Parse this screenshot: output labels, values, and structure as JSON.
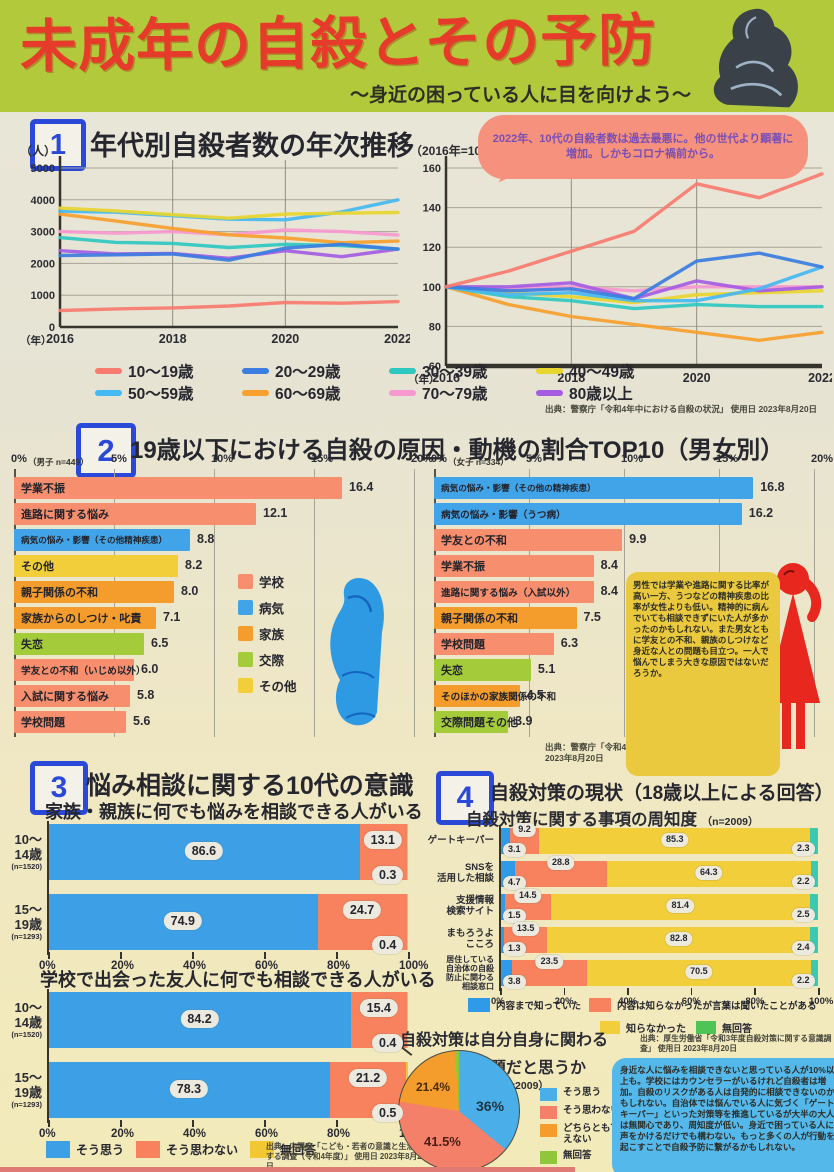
{
  "header": {
    "title": "未成年の自殺とその予防",
    "subtitle": "〜身近の困っている人に目を向けよう〜"
  },
  "s1": {
    "num": "1",
    "title": "年代別自殺者数の年次推移",
    "bubble": "2022年、10代の自殺者数は過去最悪に。他の世代より顕著に増加。しかもコロナ禍前から。",
    "source": "出典：警察庁「令和4年中における自殺の状況」 使用日 2023年8月20日"
  },
  "s2": {
    "num": "2",
    "title": "19歳以下における自殺の原因・動機の割合TOP10（男女別）",
    "note": "男性では学業や進路に関する比率が高い一方、うつなどの精神疾患の比率が女性よりも低い。精神的に病んでいても相談できずにいた人が多かったのかもしれない。また男女ともに学友との不和、親族のしつけなど身近な人との問題も目立つ。一人で悩んでしまう大きな原因ではないだろうか。",
    "source": "出典：警察庁「令和4年中における自殺の状況」 使用日 2023年8月20日"
  },
  "s3": {
    "num": "3",
    "title": "悩み相談に関する10代の意識",
    "chartA_title": "家族・親族に何でも悩みを相談できる人がいる",
    "chartB_title": "学校で出会った友人に何でも相談できる人がいる",
    "source": "出典：内閣府「こども・若者の意識と生活に関する調査（令和4年度）」 使用日 2023年8月20日"
  },
  "s4": {
    "num": "4",
    "title": "自殺対策の現状（18歳以上による回答）",
    "subtitle": "自殺対策に関する事項の周知度",
    "subtitle_n": "（n=2009）",
    "pie_t1": "自殺対策は自分自身に関わる",
    "pie_t2": "問題だと思うか",
    "pie_n": "（n=2009）",
    "note": "身近な人に悩みを相談できないと思っている人が10%以上も。学校にはカウンセラーがいるけれど自殺者は増加。自殺のリスクがある人は自発的に相談できないのかもしれない。自治体では悩んでいる人に気づく「ゲートキーパー」といった対策等を推進しているが大半の大人は無関心であり、周知度が低い。身近で困っている人に声をかけるだけでも構わない。もっと多くの人が行動を起こすことで自殺予防に繋がるかもしれない。",
    "source": "出典：厚生労働省「令和3年度自殺対策に関する意識調査」 使用日 2023年8月20日"
  },
  "legends": {
    "age_groups": [
      {
        "label": "10〜19歳",
        "color": "#f87b6f"
      },
      {
        "label": "20〜29歳",
        "color": "#3b7de0"
      },
      {
        "label": "30〜39歳",
        "color": "#2fc8c0"
      },
      {
        "label": "40〜49歳",
        "color": "#e8d52e"
      },
      {
        "label": "50〜59歳",
        "color": "#45b9f2"
      },
      {
        "label": "60〜69歳",
        "color": "#f7a02d"
      },
      {
        "label": "70〜79歳",
        "color": "#f799d0"
      },
      {
        "label": "80歳以上",
        "color": "#a55ce3"
      }
    ],
    "cause_cats": [
      {
        "label": "学校",
        "color": "#f78e6d"
      },
      {
        "label": "病気",
        "color": "#42a4e8"
      },
      {
        "label": "家族",
        "color": "#f59d2c"
      },
      {
        "label": "交際",
        "color": "#a3cb3a"
      },
      {
        "label": "その他",
        "color": "#f2cf3a"
      }
    ],
    "agree3": [
      {
        "label": "そう思う",
        "color": "#3da0e6"
      },
      {
        "label": "そう思わない",
        "color": "#f8825e"
      },
      {
        "label": "無回答",
        "color": "#f2c832"
      }
    ],
    "aware1": [
      {
        "label": "内容まで知っていた",
        "color": "#2f9be8"
      },
      {
        "label": "内容は知らなかったが言葉は聞いたことがある",
        "color": "#f8825e"
      }
    ],
    "aware2": [
      {
        "label": "知らなかった",
        "color": "#f2cf3a"
      },
      {
        "label": "無回答",
        "color": "#4dc455"
      }
    ],
    "pie": [
      {
        "label": "そう思う",
        "color": "#4aaee8"
      },
      {
        "label": "そう思わない",
        "color": "#f5806a"
      },
      {
        "label": "どちらとも言えない",
        "color": "#f59d2c"
      },
      {
        "label": "無回答",
        "color": "#8fc63c"
      }
    ]
  },
  "chart_data": [
    {
      "id": "counts",
      "type": "line",
      "title": "年代別自殺者数の年次推移（実数）",
      "ylabel": "（人）",
      "xlabel": "（年）",
      "x": [
        2016,
        2017,
        2018,
        2019,
        2020,
        2021,
        2022
      ],
      "xticks": [
        2016,
        2018,
        2020,
        2022
      ],
      "ylim": [
        0,
        5000
      ],
      "yticks": [
        0,
        1000,
        2000,
        3000,
        4000,
        5000
      ],
      "series": [
        {
          "name": "80歳以上",
          "color": "#a55ce3",
          "values": [
            2400,
            2300,
            2310,
            2160,
            2400,
            2210,
            2450
          ]
        },
        {
          "name": "70〜79歳",
          "color": "#f799d0",
          "values": [
            3000,
            2950,
            3000,
            2900,
            3050,
            3000,
            2890
          ]
        },
        {
          "name": "60〜69歳",
          "color": "#f7a02d",
          "values": [
            3550,
            3330,
            3100,
            2900,
            2800,
            2650,
            2700
          ]
        },
        {
          "name": "50〜59歳",
          "color": "#45b9f2",
          "values": [
            3640,
            3610,
            3500,
            3390,
            3370,
            3620,
            4000
          ]
        },
        {
          "name": "40〜49歳",
          "color": "#e8d52e",
          "values": [
            3740,
            3650,
            3530,
            3420,
            3550,
            3580,
            3600
          ]
        },
        {
          "name": "30〜39歳",
          "color": "#2fc8c0",
          "values": [
            2810,
            2660,
            2630,
            2500,
            2600,
            2560,
            2450
          ]
        },
        {
          "name": "20〜29歳",
          "color": "#3b7de0",
          "values": [
            2250,
            2270,
            2300,
            2100,
            2480,
            2600,
            2450
          ]
        },
        {
          "name": "10〜19歳",
          "color": "#f87b6f",
          "values": [
            520,
            570,
            600,
            660,
            770,
            750,
            800
          ]
        }
      ]
    },
    {
      "id": "index",
      "type": "line",
      "title": "年代別自殺者数の年次推移（2016年=100）",
      "ylabel": "（2016年=100）",
      "xlabel": "（年）",
      "thick_axis": true,
      "x": [
        2016,
        2017,
        2018,
        2019,
        2020,
        2021,
        2022
      ],
      "xticks": [
        2016,
        2018,
        2020,
        2022
      ],
      "ylim": [
        60,
        160
      ],
      "yticks": [
        60,
        80,
        100,
        120,
        140,
        160
      ],
      "series": [
        {
          "name": "60〜69歳",
          "color": "#f7a02d",
          "values": [
            100,
            91,
            85,
            81,
            77,
            73,
            77
          ]
        },
        {
          "name": "30〜39歳",
          "color": "#2fc8c0",
          "values": [
            100,
            95,
            93,
            89,
            91,
            90,
            90
          ]
        },
        {
          "name": "40〜49歳",
          "color": "#e8d52e",
          "values": [
            100,
            97,
            95,
            92,
            96,
            97,
            98
          ]
        },
        {
          "name": "70〜79歳",
          "color": "#f799d0",
          "values": [
            100,
            99,
            100,
            98,
            100,
            100,
            100
          ]
        },
        {
          "name": "80歳以上",
          "color": "#a55ce3",
          "values": [
            100,
            100,
            102,
            94,
            103,
            98,
            100
          ]
        },
        {
          "name": "50〜59歳",
          "color": "#45b9f2",
          "values": [
            100,
            96,
            97,
            93,
            93,
            99,
            110
          ]
        },
        {
          "name": "20〜29歳",
          "color": "#3b7de0",
          "values": [
            100,
            98,
            99,
            94,
            113,
            117,
            110
          ]
        },
        {
          "name": "10〜19歳",
          "color": "#f87b6f",
          "values": [
            100,
            108,
            118,
            128,
            152,
            145,
            157
          ]
        }
      ]
    },
    {
      "id": "boys",
      "type": "hbar",
      "subtitle": "（男子 n=449）",
      "xticks": [
        0,
        5,
        10,
        15,
        20
      ],
      "cat_colors": {
        "school": "#f78e6d",
        "illness": "#42a4e8",
        "family": "#f59d2c",
        "romance": "#a3cb3a",
        "other": "#f2cf3a"
      },
      "bars": [
        {
          "label": "学業不振",
          "v": 16.4,
          "d": "16.4",
          "cat": "school"
        },
        {
          "label": "進路に関する悩み",
          "v": 12.1,
          "d": "12.1",
          "cat": "school"
        },
        {
          "label": "病気の悩み・影響（その他精神疾患）",
          "v": 8.8,
          "d": "8.8",
          "cat": "illness"
        },
        {
          "label": "その他",
          "v": 8.2,
          "d": "8.2",
          "cat": "other"
        },
        {
          "label": "親子関係の不和",
          "v": 8.0,
          "d": "8.0",
          "cat": "family"
        },
        {
          "label": "家族からのしつけ・叱責",
          "v": 7.1,
          "d": "7.1",
          "cat": "family"
        },
        {
          "label": "失恋",
          "v": 6.5,
          "d": "6.5",
          "cat": "romance"
        },
        {
          "label": "学友との不和（いじめ以外）",
          "v": 6.0,
          "d": "6.0",
          "cat": "school"
        },
        {
          "label": "入試に関する悩み",
          "v": 5.8,
          "d": "5.8",
          "cat": "school"
        },
        {
          "label": "学校問題",
          "v": 5.6,
          "d": "5.6",
          "cat": "school"
        }
      ]
    },
    {
      "id": "girls",
      "type": "hbar",
      "subtitle": "（女子 n=334）",
      "xticks": [
        0,
        5,
        10,
        15,
        20
      ],
      "cat_colors": {
        "school": "#f78e6d",
        "illness": "#42a4e8",
        "family": "#f59d2c",
        "romance": "#a3cb3a",
        "other": "#f2cf3a"
      },
      "bars": [
        {
          "label": "病気の悩み・影響（その他の精神疾患）",
          "v": 16.8,
          "d": "16.8",
          "cat": "illness"
        },
        {
          "label": "病気の悩み・影響（うつ病）",
          "v": 16.2,
          "d": "16.2",
          "cat": "illness"
        },
        {
          "label": "学友との不和",
          "v": 9.9,
          "d": "9.9",
          "cat": "school"
        },
        {
          "label": "学業不振",
          "v": 8.4,
          "d": "8.4",
          "cat": "school"
        },
        {
          "label": "進路に関する悩み（入試以外）",
          "v": 8.4,
          "d": "8.4",
          "cat": "school"
        },
        {
          "label": "親子関係の不和",
          "v": 7.5,
          "d": "7.5",
          "cat": "family"
        },
        {
          "label": "学校問題",
          "v": 6.3,
          "d": "6.3",
          "cat": "school"
        },
        {
          "label": "失恋",
          "v": 5.1,
          "d": "5.1",
          "cat": "romance"
        },
        {
          "label": "そのほかの家族関係の不和",
          "v": 4.5,
          "d": "4.5",
          "cat": "family"
        },
        {
          "label": "交際問題その他",
          "v": 3.9,
          "d": "3.9",
          "cat": "romance"
        }
      ]
    },
    {
      "id": "family",
      "type": "hstack",
      "pillstyle": "big",
      "show_axis": true,
      "title": "家族・親族に何でも悩みを相談できる人がいる",
      "xticks": [
        0,
        20,
        40,
        60,
        80,
        100
      ],
      "colors": [
        "#3da0e6",
        "#f8825e",
        "#f2c832"
      ],
      "rows": [
        {
          "label": "10〜\n14歳",
          "sub": "(n=1520)",
          "values": [
            86.6,
            13.1,
            0.3
          ],
          "d": [
            "86.6",
            "13.1",
            "0.3"
          ]
        },
        {
          "label": "15〜\n19歳",
          "sub": "(n=1293)",
          "values": [
            74.9,
            24.7,
            0.4
          ],
          "d": [
            "74.9",
            "24.7",
            "0.4"
          ]
        }
      ]
    },
    {
      "id": "friends",
      "type": "hstack",
      "pillstyle": "big",
      "show_axis": true,
      "title": "学校で出会った友人に何でも相談できる人がいる",
      "xticks": [
        0,
        20,
        40,
        60,
        80,
        100
      ],
      "colors": [
        "#3da0e6",
        "#f8825e",
        "#f2c832"
      ],
      "rows": [
        {
          "label": "10〜\n14歳",
          "sub": "(n=1520)",
          "values": [
            84.2,
            15.4,
            0.4
          ],
          "d": [
            "84.2",
            "15.4",
            "0.4"
          ]
        },
        {
          "label": "15〜\n19歳",
          "sub": "(n=1293)",
          "values": [
            78.3,
            21.2,
            0.5
          ],
          "d": [
            "78.3",
            "21.2",
            "0.5"
          ]
        }
      ]
    },
    {
      "id": "aware",
      "type": "hstack",
      "pillstyle": "small",
      "show_axis": true,
      "title": "自殺対策に関する事項の周知度",
      "xticks": [
        0,
        20,
        40,
        60,
        80,
        100
      ],
      "colors": [
        "#2f9be8",
        "#f8825e",
        "#f2cf3a",
        "#3cc9b0"
      ],
      "rows": [
        {
          "label": "ゲートキーパー",
          "values": [
            3.1,
            9.2,
            85.3,
            2.3
          ],
          "d": [
            "3.1",
            "9.2",
            "85.3",
            "2.3"
          ]
        },
        {
          "label": "SNSを\n活用した相談",
          "values": [
            4.7,
            28.8,
            64.3,
            2.2
          ],
          "d": [
            "4.7",
            "28.8",
            "64.3",
            "2.2"
          ]
        },
        {
          "label": "支援情報\n検索サイト",
          "values": [
            1.5,
            14.5,
            81.4,
            2.5
          ],
          "d": [
            "1.5",
            "14.5",
            "81.4",
            "2.5"
          ]
        },
        {
          "label": "まもろうよ\nこころ",
          "values": [
            1.3,
            13.5,
            82.8,
            2.4
          ],
          "d": [
            "1.3",
            "13.5",
            "82.8",
            "2.4"
          ]
        },
        {
          "label": "居住している\n自治体の自殺\n防止に関わる\n相談窓口",
          "values": [
            3.8,
            23.5,
            70.5,
            2.2
          ],
          "d": [
            "3.8",
            "23.5",
            "70.5",
            "2.2"
          ]
        }
      ]
    },
    {
      "id": "selfpie",
      "type": "pie",
      "title": "自殺対策は自分自身に関わる問題だと思うか",
      "slices": [
        {
          "label": "そう思う",
          "value": 36,
          "display": "36%",
          "color": "#4aaee8"
        },
        {
          "label": "そう思わない",
          "value": 41.5,
          "display": "41.5%",
          "color": "#f5806a"
        },
        {
          "label": "どちらとも言えない",
          "value": 21.4,
          "display": "21.4%",
          "color": "#f59d2c"
        },
        {
          "label": "無回答",
          "value": 1.1,
          "display": "1%",
          "color": "#8fc63c"
        }
      ]
    }
  ]
}
